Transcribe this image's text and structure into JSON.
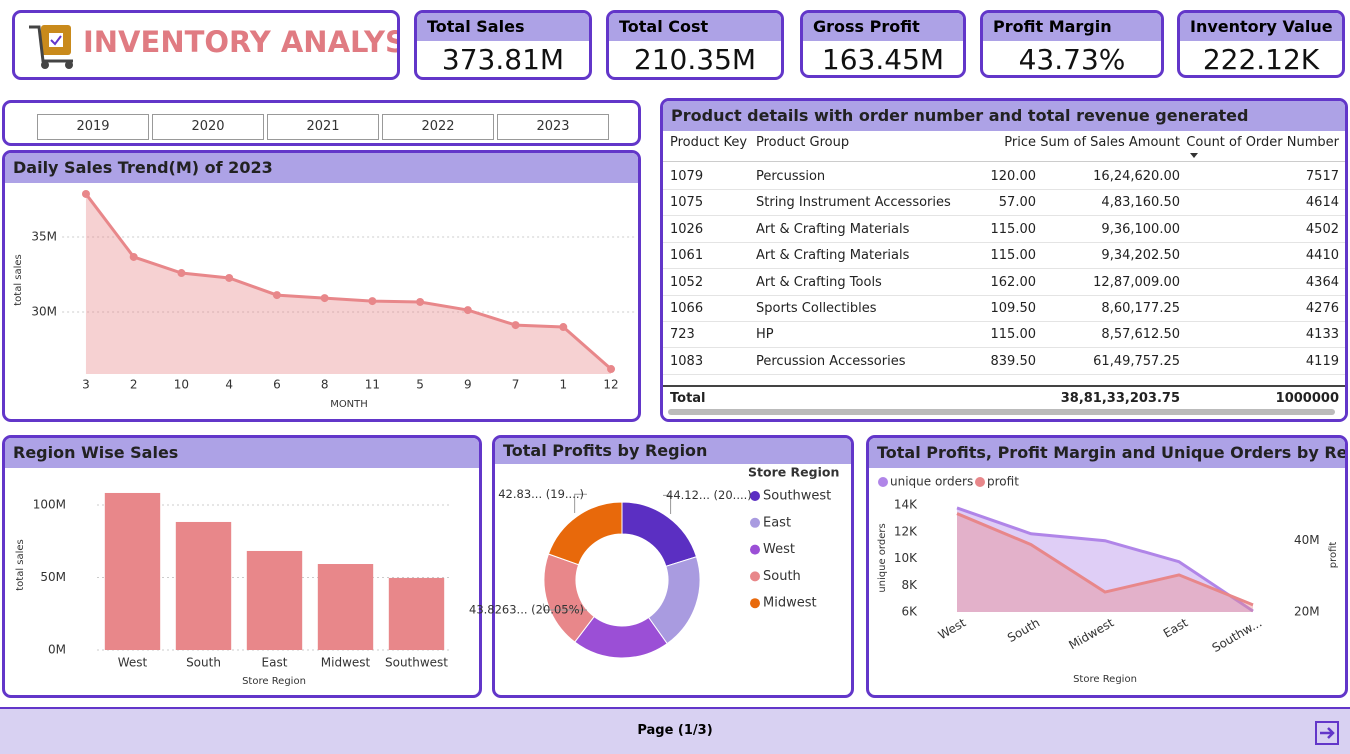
{
  "header": {
    "title": "INVENTORY ANALYSIS"
  },
  "kpis": [
    {
      "label": "Total Sales",
      "value": "373.81M"
    },
    {
      "label": "Total Cost",
      "value": "210.35M"
    },
    {
      "label": "Gross Profit",
      "value": "163.45M"
    },
    {
      "label": "Profit Margin",
      "value": "43.73%"
    },
    {
      "label": "Inventory Value",
      "value": "222.12K"
    }
  ],
  "slicer": {
    "years": [
      "2019",
      "2020",
      "2021",
      "2022",
      "2023"
    ]
  },
  "table": {
    "title": "Product details with order number and total revenue generated",
    "columns": [
      "Product Key",
      "Product Group",
      "Price",
      "Sum of Sales Amount",
      "Count of Order Number"
    ],
    "rows": [
      [
        "1079",
        "Percussion",
        "120.00",
        "16,24,620.00",
        "7517"
      ],
      [
        "1075",
        "String Instrument Accessories",
        "57.00",
        "4,83,160.50",
        "4614"
      ],
      [
        "1026",
        "Art & Crafting Materials",
        "115.00",
        "9,36,100.00",
        "4502"
      ],
      [
        "1061",
        "Art & Crafting Materials",
        "115.00",
        "9,34,202.50",
        "4410"
      ],
      [
        "1052",
        "Art & Crafting Tools",
        "162.00",
        "12,87,009.00",
        "4364"
      ],
      [
        "1066",
        "Sports Collectibles",
        "109.50",
        "8,60,177.25",
        "4276"
      ],
      [
        "723",
        "HP",
        "115.00",
        "8,57,612.50",
        "4133"
      ],
      [
        "1083",
        "Percussion Accessories",
        "839.50",
        "61,49,757.25",
        "4119"
      ]
    ],
    "total": {
      "label": "Total",
      "sales": "38,81,33,203.75",
      "count": "1000000"
    }
  },
  "chart_data": [
    {
      "type": "area",
      "title": "Daily Sales Trend(M) of 2023",
      "x_label": "MONTH",
      "y_label": "total sales",
      "categories": [
        "3",
        "2",
        "10",
        "4",
        "6",
        "8",
        "11",
        "5",
        "9",
        "7",
        "1",
        "12"
      ],
      "values": [
        37870000,
        33670000,
        32600000,
        32270000,
        31130000,
        30930000,
        30730000,
        30670000,
        30130000,
        29130000,
        29000000,
        26200000
      ],
      "color": "#e8878a",
      "ylim": [
        25870000,
        38800000
      ],
      "yticks": [
        {
          "value": 30000000,
          "label": "30M"
        },
        {
          "value": 35000000,
          "label": "35M"
        }
      ],
      "grid": true
    },
    {
      "type": "bar",
      "title": "Region Wise Sales",
      "x_label": "Store Region",
      "y_label": "total sales",
      "categories": [
        "West",
        "South",
        "East",
        "Midwest",
        "Southwest"
      ],
      "values": [
        108300000,
        88300000,
        68300000,
        59300000,
        49700000
      ],
      "color": "#e8878a",
      "ylim": [
        0,
        115000000
      ],
      "yticks": [
        {
          "value": 0,
          "label": "0M"
        },
        {
          "value": 50000000,
          "label": "50M"
        },
        {
          "value": 100000000,
          "label": "100M"
        }
      ],
      "grid": true
    },
    {
      "type": "donut",
      "title": "Total Profits by Region",
      "legend_title": "Store Region",
      "categories": [
        "Southwest",
        "East",
        "West",
        "South",
        "Midwest"
      ],
      "values": [
        44.12,
        43.7,
        44.1,
        43.8263,
        42.83
      ],
      "value_labels": [
        "44.12... (20....)",
        null,
        null,
        "43.8263... (20.05%)",
        "42.83... (19....)"
      ],
      "colors": [
        "#5b2fc2",
        "#a99be0",
        "#9b4fd6",
        "#e8878a",
        "#e8690b"
      ]
    },
    {
      "type": "combo",
      "title": "Total Profits, Profit Margin and Unique Orders by Region",
      "x_label": "Store Region",
      "y_label": "unique orders",
      "y2_label": "profit",
      "categories": [
        "West",
        "South",
        "Midwest",
        "East",
        "Southw..."
      ],
      "series": [
        {
          "name": "unique orders",
          "color": "#b085e8",
          "values": [
            13780,
            11850,
            11330,
            9760,
            6070
          ]
        },
        {
          "name": "profit",
          "color": "#e8878a",
          "axis": "y2",
          "values": [
            47600000,
            38900000,
            25600000,
            30400000,
            22000000
          ]
        }
      ],
      "ylim": [
        6000,
        14000
      ],
      "yticks": [
        {
          "value": 6000,
          "label": "6K"
        },
        {
          "value": 8000,
          "label": "8K"
        },
        {
          "value": 10000,
          "label": "10K"
        },
        {
          "value": 12000,
          "label": "12K"
        },
        {
          "value": 14000,
          "label": "14K"
        }
      ],
      "y2lim": [
        20000000,
        50000000
      ],
      "y2ticks": [
        {
          "value": 20000000,
          "label": "20M"
        },
        {
          "value": 40000000,
          "label": "40M"
        }
      ],
      "grid": false
    }
  ],
  "footer": {
    "page": "Page (1/3)"
  }
}
